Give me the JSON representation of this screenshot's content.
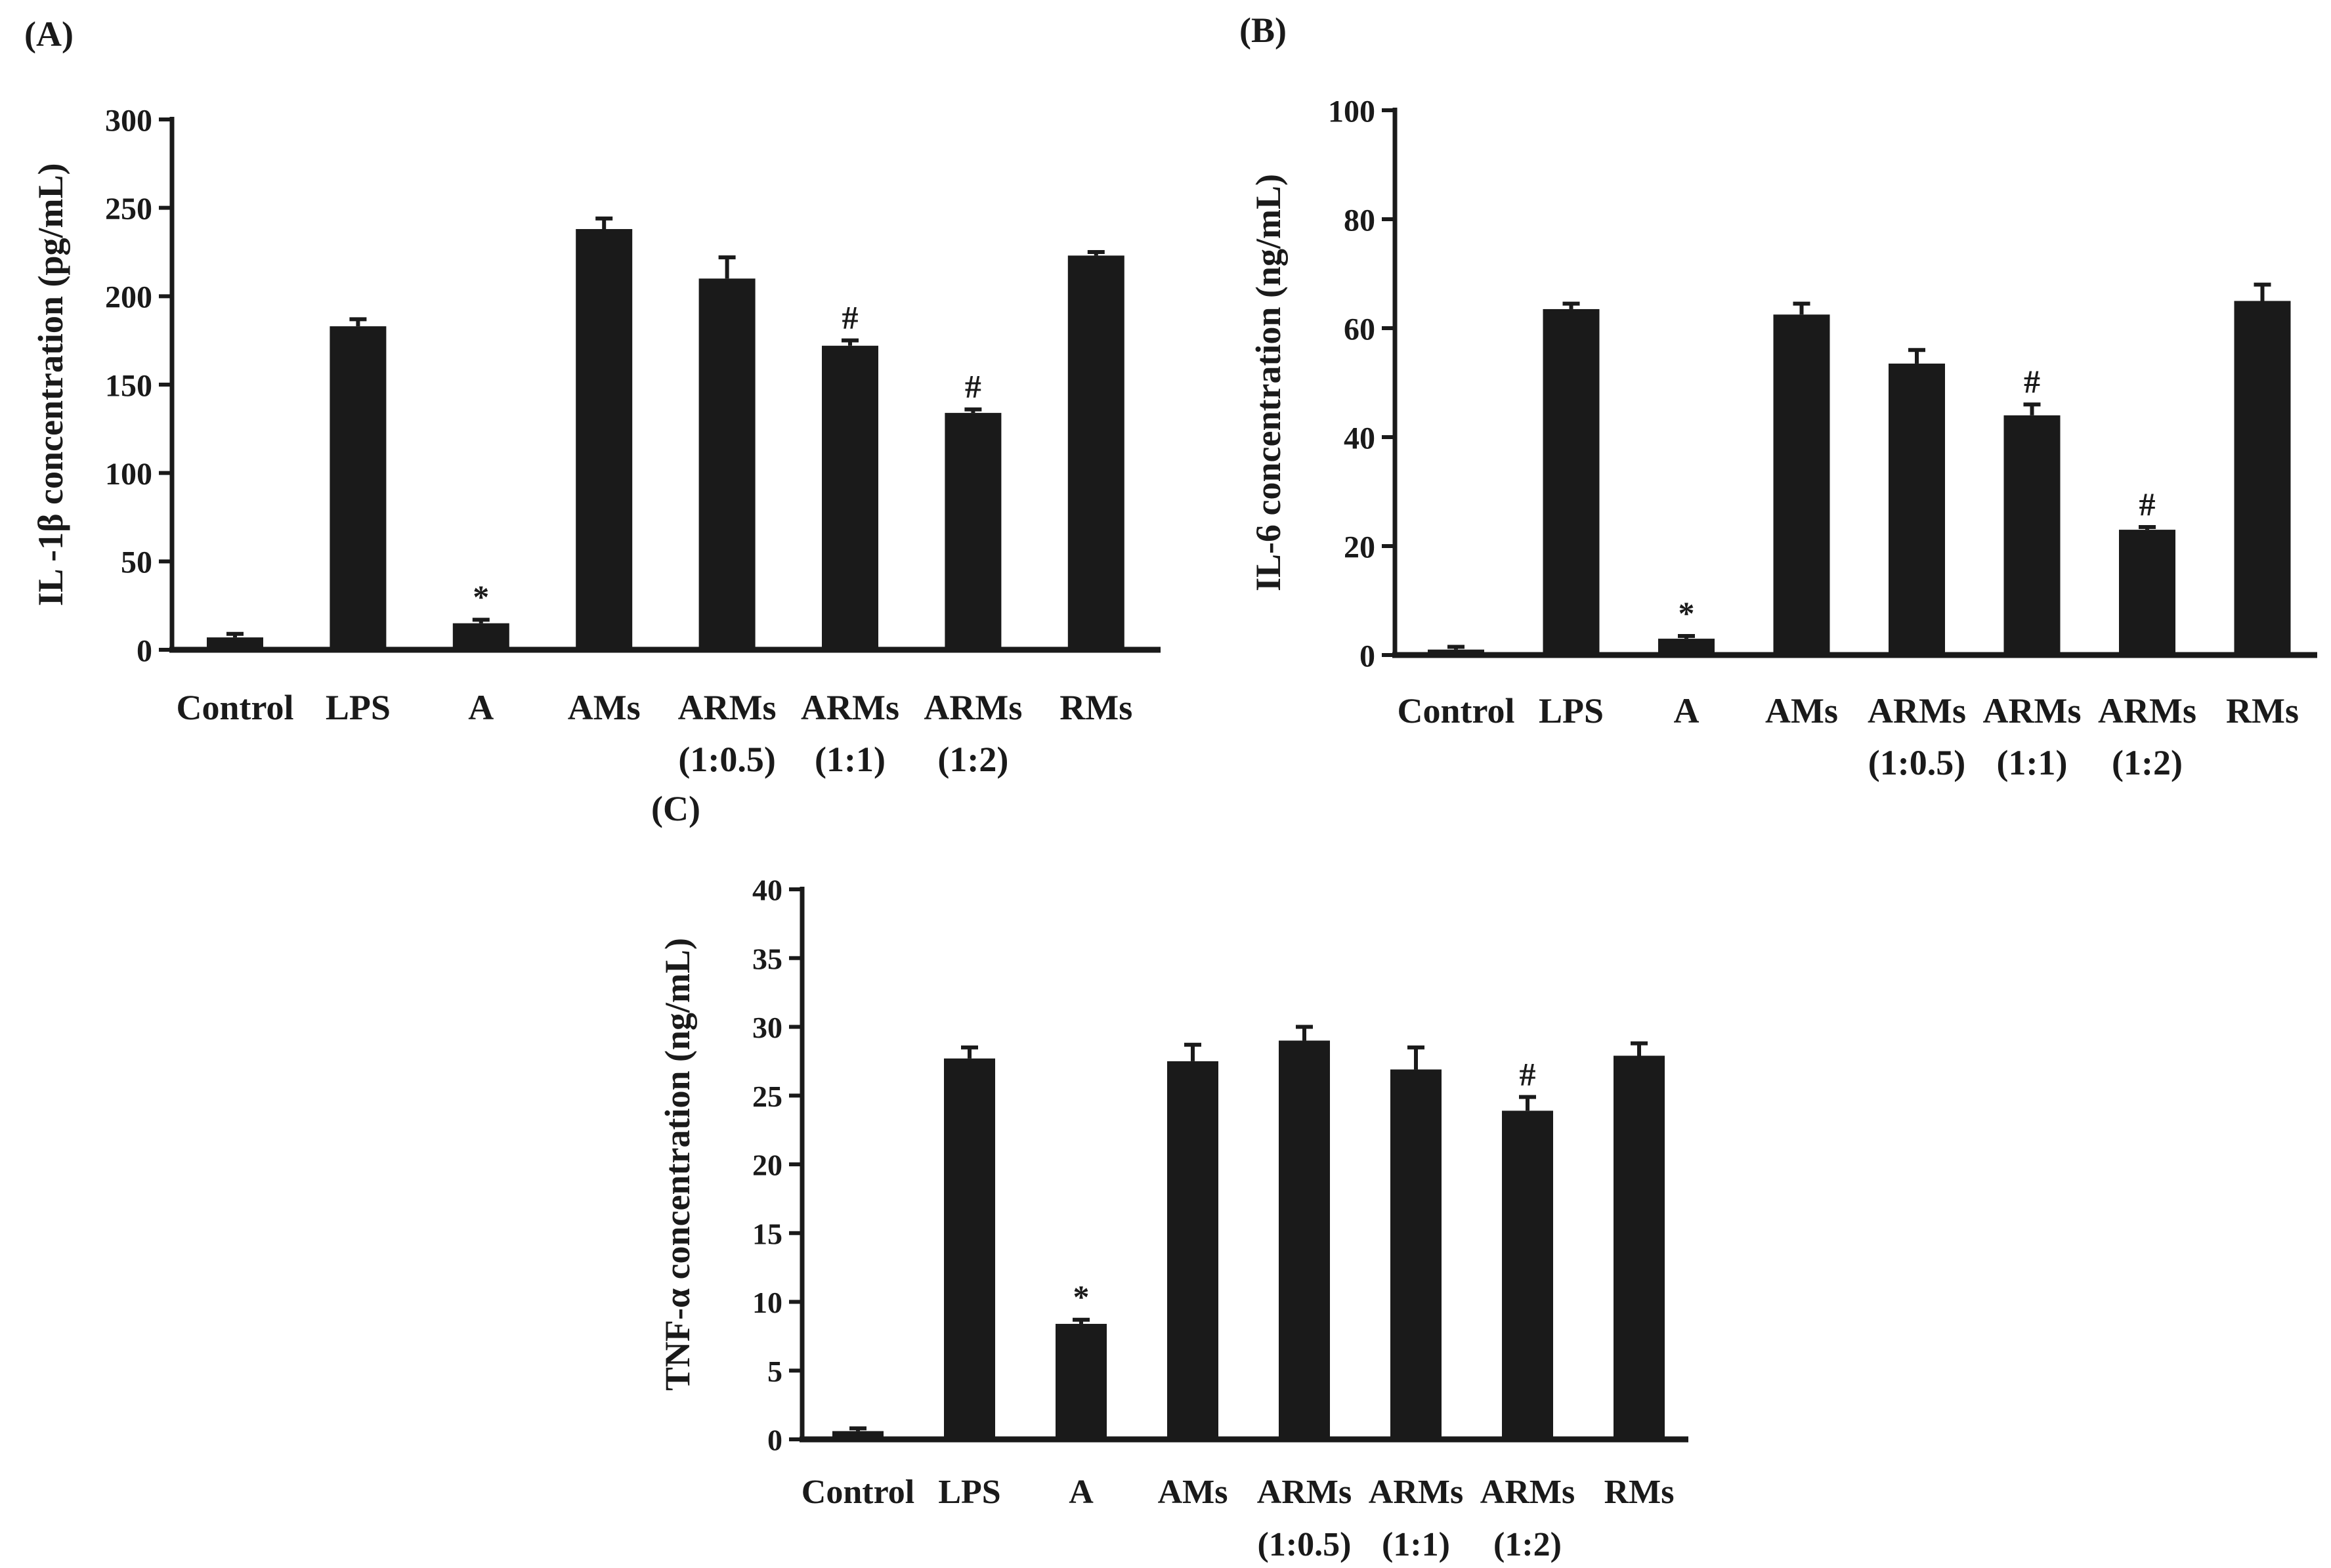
{
  "figure": {
    "bar_color": "#1a1a1a",
    "background": "#ffffff"
  },
  "chart_data": [
    {
      "id": "A",
      "panel_label": "(A)",
      "type": "bar",
      "ylabel": "IL -1β concentration  (pg/mL)",
      "ylim": [
        0,
        300
      ],
      "yticks": [
        0,
        50,
        100,
        150,
        200,
        250,
        300
      ],
      "categories": [
        [
          "Control"
        ],
        [
          "LPS"
        ],
        [
          "A"
        ],
        [
          "AMs"
        ],
        [
          "ARMs",
          "(1:0.5)"
        ],
        [
          "ARMs",
          "(1:1)"
        ],
        [
          "ARMs",
          "(1:2)"
        ],
        [
          "RMs"
        ]
      ],
      "values": [
        7,
        183,
        15,
        238,
        210,
        172,
        134,
        223
      ],
      "errors": [
        2,
        4,
        2,
        6,
        12,
        3,
        2,
        2
      ],
      "annotations": [
        "",
        "",
        "*",
        "",
        "",
        "#",
        "#",
        ""
      ]
    },
    {
      "id": "B",
      "panel_label": "(B)",
      "type": "bar",
      "ylabel": "IL-6  concentration  (ng/mL)",
      "ylim": [
        0,
        100
      ],
      "yticks": [
        0,
        20,
        40,
        60,
        80,
        100
      ],
      "categories": [
        [
          "Control"
        ],
        [
          "LPS"
        ],
        [
          "A"
        ],
        [
          "AMs"
        ],
        [
          "ARMs",
          "(1:0.5)"
        ],
        [
          "ARMs",
          "(1:1)"
        ],
        [
          "ARMs",
          "(1:2)"
        ],
        [
          "RMs"
        ]
      ],
      "values": [
        1,
        63.5,
        3,
        62.5,
        53.5,
        44,
        23,
        65
      ],
      "errors": [
        0.5,
        1,
        0.5,
        2,
        2.5,
        2,
        0.5,
        3
      ],
      "annotations": [
        "",
        "",
        "*",
        "",
        "",
        "#",
        "#",
        ""
      ]
    },
    {
      "id": "C",
      "panel_label": "(C)",
      "type": "bar",
      "ylabel": "TNF-α  concentration  (ng/mL)",
      "ylim": [
        0,
        40
      ],
      "yticks": [
        0,
        5,
        10,
        15,
        20,
        25,
        30,
        35,
        40
      ],
      "categories": [
        [
          "Control"
        ],
        [
          "LPS"
        ],
        [
          "A"
        ],
        [
          "AMs"
        ],
        [
          "ARMs",
          "(1:0.5)"
        ],
        [
          "ARMs",
          "(1:1)"
        ],
        [
          "ARMs",
          "(1:2)"
        ],
        [
          "RMs"
        ]
      ],
      "values": [
        0.6,
        27.7,
        8.4,
        27.5,
        29,
        26.9,
        23.9,
        27.9
      ],
      "errors": [
        0.2,
        0.8,
        0.3,
        1.2,
        1,
        1.6,
        1,
        0.9
      ],
      "annotations": [
        "",
        "",
        "*",
        "",
        "",
        "",
        "#",
        ""
      ]
    }
  ]
}
